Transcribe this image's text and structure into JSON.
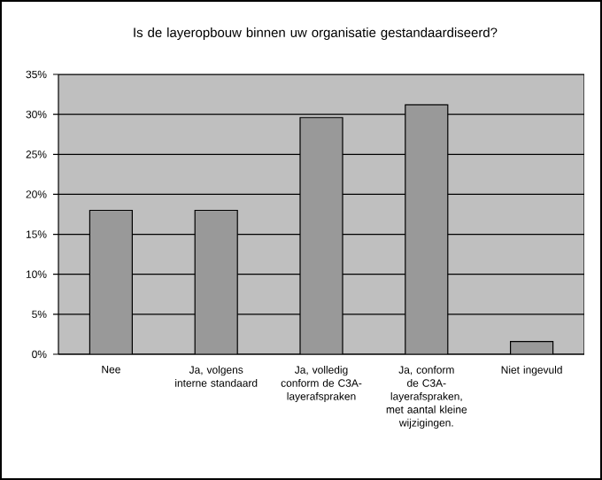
{
  "chart_data": {
    "type": "bar",
    "title": "Is de layeropbouw binnen uw organisatie gestandaardiseerd?",
    "categories": [
      "Nee",
      "Ja, volgens interne standaard",
      "Ja, volledig conform de C3A-layerafspraken",
      "Ja, conform de C3A-layerafspraken, met aantal kleine wijzigingen.",
      "Niet ingevuld"
    ],
    "values": [
      18,
      18,
      29.6,
      31.2,
      1.6
    ],
    "color": "#999999",
    "ylim": [
      0,
      35
    ],
    "yticks": [
      {
        "value": 0,
        "label": "0%"
      },
      {
        "value": 5,
        "label": "5%"
      },
      {
        "value": 10,
        "label": "10%"
      },
      {
        "value": 15,
        "label": "15%"
      },
      {
        "value": 20,
        "label": "20%"
      },
      {
        "value": 25,
        "label": "25%"
      },
      {
        "value": 30,
        "label": "30%"
      },
      {
        "value": 35,
        "label": "35%"
      }
    ],
    "grid": "y"
  }
}
